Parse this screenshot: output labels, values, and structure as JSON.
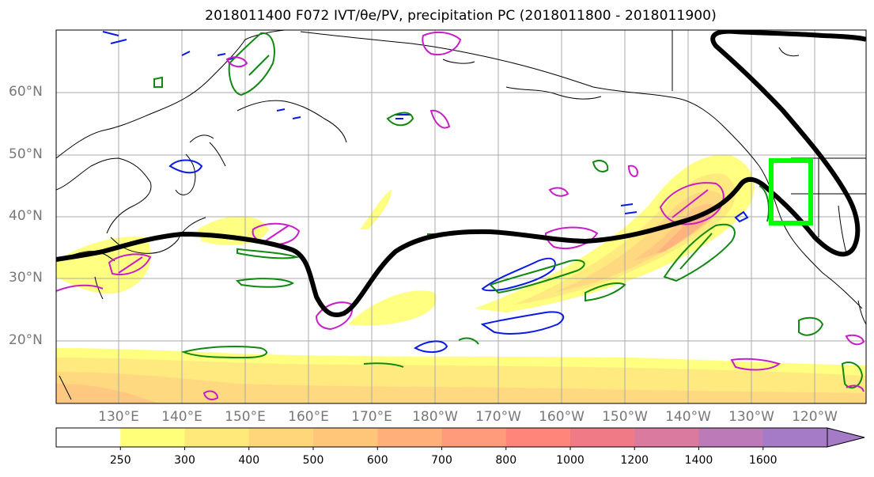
{
  "title": "2018011400 F072 IVT/θe/PV, precipitation PC (2018011800 - 2018011900)",
  "lat_labels": [
    "60°N",
    "50°N",
    "40°N",
    "30°N",
    "20°N"
  ],
  "lon_labels": [
    "130°E",
    "140°E",
    "150°E",
    "160°E",
    "170°E",
    "180°W",
    "170°W",
    "160°W",
    "150°W",
    "140°W",
    "130°W",
    "120°W"
  ],
  "colorbar": {
    "ticks": [
      "250",
      "300",
      "400",
      "500",
      "600",
      "700",
      "800",
      "1000",
      "1200",
      "1400",
      "1600"
    ],
    "colors": [
      "#ffffff",
      "#ffff7a",
      "#ffe97a",
      "#ffd77a",
      "#ffc67a",
      "#ffb07a",
      "#ff9a7a",
      "#ff857a",
      "#f07a85",
      "#d97a9e",
      "#bc7ab8",
      "#a57ac6"
    ]
  },
  "colors": {
    "contour_black": "#000000",
    "pv_green": "#118811",
    "theta_blue": "#0a1ae6",
    "precip_magenta": "#c81ec8",
    "box_green": "#00ff00"
  }
}
